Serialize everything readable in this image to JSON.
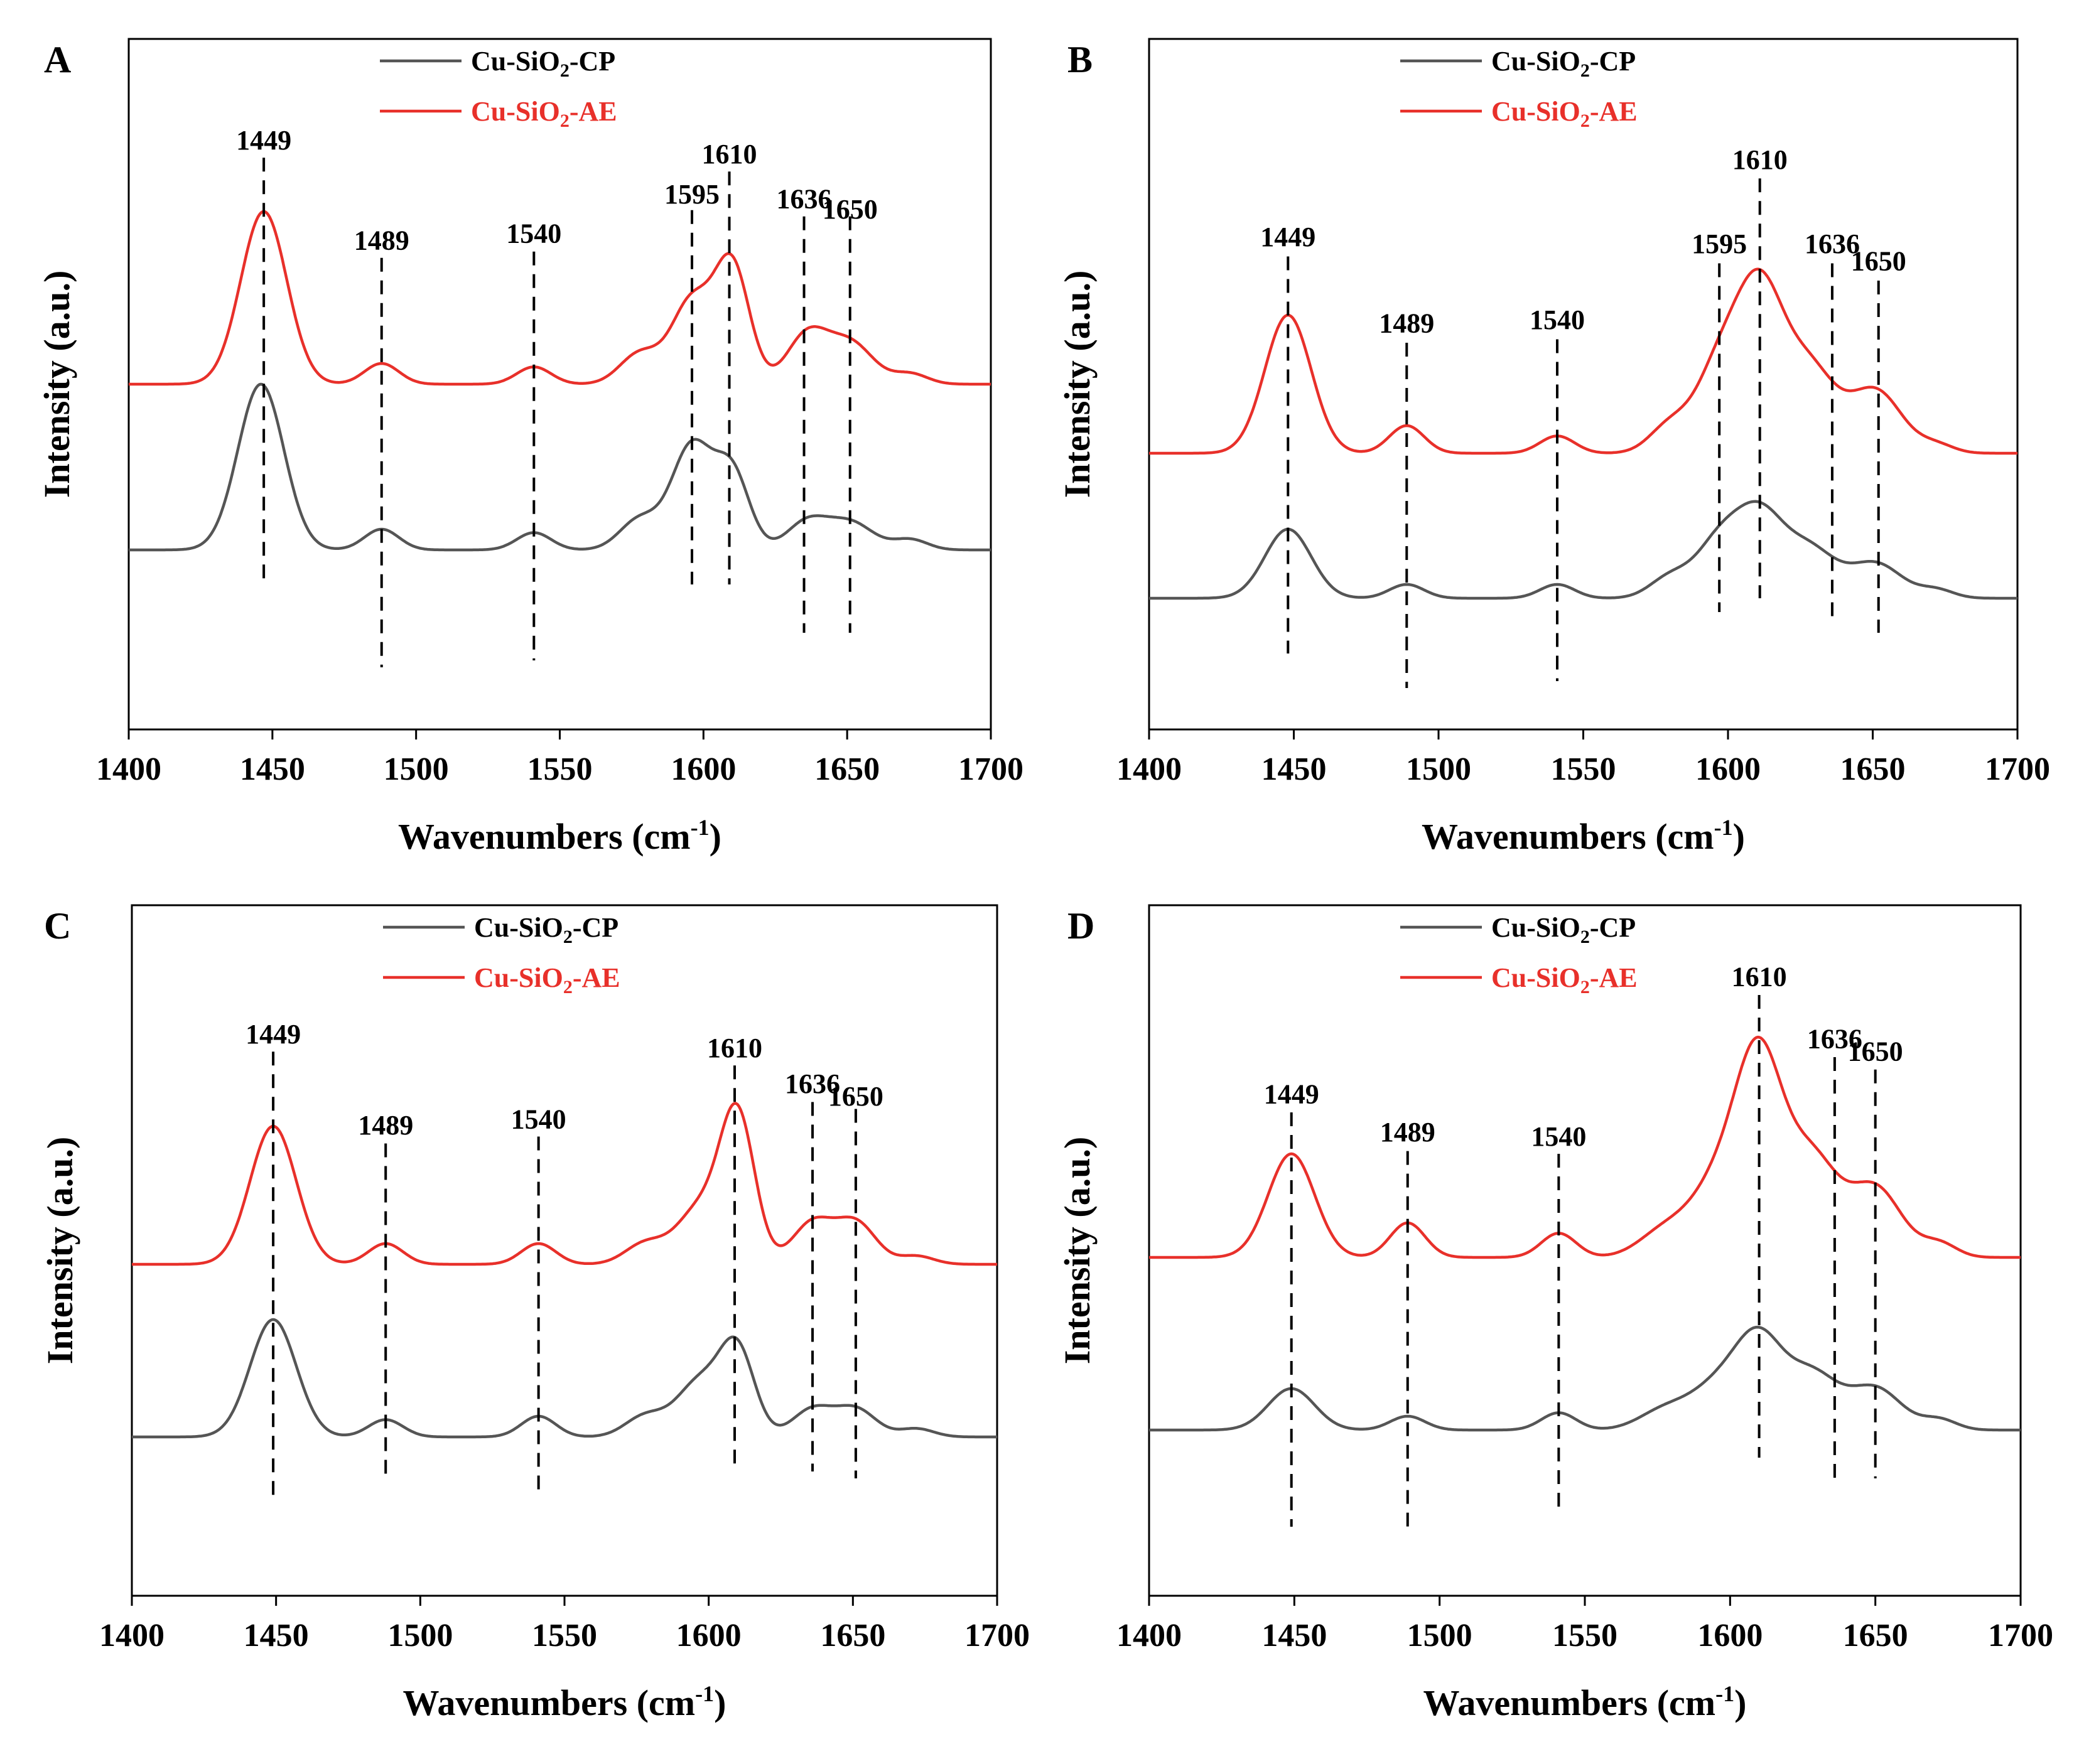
{
  "figure": {
    "panel_count": 4
  },
  "chart_data": [
    {
      "type": "line",
      "panel": "A",
      "xlabel": "Wavenumbers (cm-1)",
      "xlabel_parts": {
        "main": "Wavenumbers (cm",
        "sup": "-1",
        "tail": ")"
      },
      "ylabel": "Intensity (a.u.)",
      "xlim": [
        1400,
        1700
      ],
      "xticks": [
        1400,
        1450,
        1500,
        1550,
        1600,
        1650,
        1700
      ],
      "ylim": [
        0,
        1
      ],
      "grid": false,
      "legend_position": "top-center",
      "series": [
        {
          "name": "Cu-SiO2-CP",
          "name_parts": {
            "pre": "Cu-SiO",
            "sub": "2",
            "post": "-CP"
          },
          "color": "#555555",
          "baseline": 0.26,
          "peaks": [
            [
              1446,
              0.24,
              8
            ],
            [
              1488,
              0.03,
              6
            ],
            [
              1541,
              0.025,
              6
            ],
            [
              1578,
              0.045,
              7
            ],
            [
              1596,
              0.15,
              7
            ],
            [
              1610,
              0.11,
              6
            ],
            [
              1636,
              0.04,
              7
            ],
            [
              1651,
              0.04,
              8
            ],
            [
              1672,
              0.015,
              6
            ]
          ]
        },
        {
          "name": "Cu-SiO2-AE",
          "name_parts": {
            "pre": "Cu-SiO",
            "sub": "2",
            "post": "-AE"
          },
          "color": "#e8302a",
          "baseline": 0.5,
          "peaks": [
            [
              1447,
              0.25,
              8
            ],
            [
              1488,
              0.03,
              6
            ],
            [
              1541,
              0.025,
              6
            ],
            [
              1578,
              0.045,
              7
            ],
            [
              1596,
              0.12,
              7
            ],
            [
              1610,
              0.17,
              6
            ],
            [
              1636,
              0.07,
              7
            ],
            [
              1651,
              0.06,
              8
            ],
            [
              1672,
              0.015,
              6
            ]
          ]
        }
      ],
      "annotations": [
        {
          "label": "1449",
          "x": 1447,
          "line_top": 0.828,
          "line_bottom": 0.21,
          "label_y": 0.84
        },
        {
          "label": "1489",
          "x": 1488,
          "line_top": 0.683,
          "line_bottom": 0.09,
          "label_y": 0.695
        },
        {
          "label": "1540",
          "x": 1541,
          "line_top": 0.692,
          "line_bottom": 0.1,
          "label_y": 0.705
        },
        {
          "label": "1595",
          "x": 1596,
          "line_top": 0.752,
          "line_bottom": 0.21,
          "label_y": 0.762
        },
        {
          "label": "1610",
          "x": 1609,
          "line_top": 0.808,
          "line_bottom": 0.21,
          "label_y": 0.82
        },
        {
          "label": "1636",
          "x": 1635,
          "line_top": 0.743,
          "line_bottom": 0.14,
          "label_y": 0.755
        },
        {
          "label": "1650",
          "x": 1651,
          "line_top": 0.743,
          "line_bottom": 0.14,
          "label_y": 0.74
        }
      ]
    },
    {
      "type": "line",
      "panel": "B",
      "xlabel": "Wavenumbers (cm-1)",
      "xlabel_parts": {
        "main": "Wavenumbers (cm",
        "sup": "-1",
        "tail": ")"
      },
      "ylabel": "Intensity (a.u.)",
      "xlim": [
        1400,
        1700
      ],
      "xticks": [
        1400,
        1450,
        1500,
        1550,
        1600,
        1650,
        1700
      ],
      "ylim": [
        0,
        1
      ],
      "grid": false,
      "legend_position": "top-center",
      "series": [
        {
          "name": "Cu-SiO2-CP",
          "name_parts": {
            "pre": "Cu-SiO",
            "sub": "2",
            "post": "-CP"
          },
          "color": "#555555",
          "baseline": 0.19,
          "peaks": [
            [
              1448,
              0.1,
              8
            ],
            [
              1489,
              0.02,
              6
            ],
            [
              1541,
              0.02,
              6
            ],
            [
              1580,
              0.03,
              7
            ],
            [
              1597,
              0.08,
              8
            ],
            [
              1611,
              0.11,
              8
            ],
            [
              1628,
              0.07,
              9
            ],
            [
              1651,
              0.05,
              9
            ],
            [
              1672,
              0.012,
              6
            ]
          ]
        },
        {
          "name": "Cu-SiO2-AE",
          "name_parts": {
            "pre": "Cu-SiO",
            "sub": "2",
            "post": "-AE"
          },
          "color": "#e8302a",
          "baseline": 0.4,
          "peaks": [
            [
              1448,
              0.2,
              8
            ],
            [
              1489,
              0.04,
              6
            ],
            [
              1541,
              0.025,
              6
            ],
            [
              1580,
              0.04,
              7
            ],
            [
              1597,
              0.12,
              8
            ],
            [
              1611,
              0.22,
              8
            ],
            [
              1628,
              0.12,
              9
            ],
            [
              1651,
              0.09,
              9
            ],
            [
              1672,
              0.012,
              6
            ]
          ]
        }
      ],
      "annotations": [
        {
          "label": "1449",
          "x": 1448,
          "line_top": 0.685,
          "line_bottom": 0.11,
          "label_y": 0.7
        },
        {
          "label": "1489",
          "x": 1489,
          "line_top": 0.56,
          "line_bottom": 0.06,
          "label_y": 0.575
        },
        {
          "label": "1540",
          "x": 1541,
          "line_top": 0.565,
          "line_bottom": 0.07,
          "label_y": 0.58
        },
        {
          "label": "1595",
          "x": 1597,
          "line_top": 0.675,
          "line_bottom": 0.17,
          "label_y": 0.69
        },
        {
          "label": "1610",
          "x": 1611,
          "line_top": 0.798,
          "line_bottom": 0.19,
          "label_y": 0.812
        },
        {
          "label": "1636",
          "x": 1636,
          "line_top": 0.675,
          "line_bottom": 0.16,
          "label_y": 0.69
        },
        {
          "label": "1650",
          "x": 1652,
          "line_top": 0.65,
          "line_bottom": 0.14,
          "label_y": 0.665
        }
      ]
    },
    {
      "type": "line",
      "panel": "C",
      "xlabel": "Wavenumbers (cm-1)",
      "xlabel_parts": {
        "main": "Wavenumbers (cm",
        "sup": "-1",
        "tail": ")"
      },
      "ylabel": "Intensity (a.u.)",
      "xlim": [
        1400,
        1700
      ],
      "xticks": [
        1400,
        1450,
        1500,
        1550,
        1600,
        1650,
        1700
      ],
      "ylim": [
        0,
        1
      ],
      "grid": false,
      "legend_position": "top-center",
      "series": [
        {
          "name": "Cu-SiO2-CP",
          "name_parts": {
            "pre": "Cu-SiO",
            "sub": "2",
            "post": "-CP"
          },
          "color": "#555555",
          "baseline": 0.23,
          "peaks": [
            [
              1449,
              0.17,
              8
            ],
            [
              1488,
              0.025,
              6
            ],
            [
              1541,
              0.03,
              6
            ],
            [
              1578,
              0.03,
              7
            ],
            [
              1597,
              0.08,
              8
            ],
            [
              1610,
              0.12,
              6
            ],
            [
              1636,
              0.04,
              7
            ],
            [
              1651,
              0.04,
              7
            ],
            [
              1672,
              0.012,
              6
            ]
          ]
        },
        {
          "name": "Cu-SiO2-AE",
          "name_parts": {
            "pre": "Cu-SiO",
            "sub": "2",
            "post": "-AE"
          },
          "color": "#e8302a",
          "baseline": 0.48,
          "peaks": [
            [
              1449,
              0.2,
              8
            ],
            [
              1488,
              0.03,
              6
            ],
            [
              1541,
              0.03,
              6
            ],
            [
              1578,
              0.03,
              7
            ],
            [
              1597,
              0.08,
              8
            ],
            [
              1610,
              0.21,
              6
            ],
            [
              1636,
              0.06,
              7
            ],
            [
              1651,
              0.06,
              7
            ],
            [
              1672,
              0.012,
              6
            ]
          ]
        }
      ],
      "annotations": [
        {
          "label": "1449",
          "x": 1449,
          "line_top": 0.788,
          "line_bottom": 0.14,
          "label_y": 0.8
        },
        {
          "label": "1489",
          "x": 1488,
          "line_top": 0.655,
          "line_bottom": 0.17,
          "label_y": 0.668
        },
        {
          "label": "1540",
          "x": 1541,
          "line_top": 0.665,
          "line_bottom": 0.15,
          "label_y": 0.677
        },
        {
          "label": "1610",
          "x": 1609,
          "line_top": 0.768,
          "line_bottom": 0.18,
          "label_y": 0.78
        },
        {
          "label": "1636",
          "x": 1636,
          "line_top": 0.715,
          "line_bottom": 0.18,
          "label_y": 0.728
        },
        {
          "label": "1650",
          "x": 1651,
          "line_top": 0.705,
          "line_bottom": 0.17,
          "label_y": 0.71
        }
      ]
    },
    {
      "type": "line",
      "panel": "D",
      "xlabel": "Wavenumbers (cm-1)",
      "xlabel_parts": {
        "main": "Wavenumbers (cm",
        "sup": "-1",
        "tail": ")"
      },
      "ylabel": "Intensity (a.u.)",
      "xlim": [
        1400,
        1700
      ],
      "xticks": [
        1400,
        1450,
        1500,
        1550,
        1600,
        1650,
        1700
      ],
      "ylim": [
        0,
        1
      ],
      "grid": false,
      "legend_position": "top-center",
      "series": [
        {
          "name": "Cu-SiO2-CP",
          "name_parts": {
            "pre": "Cu-SiO",
            "sub": "2",
            "post": "-CP"
          },
          "color": "#555555",
          "baseline": 0.24,
          "peaks": [
            [
              1449,
              0.06,
              8
            ],
            [
              1489,
              0.02,
              6
            ],
            [
              1541,
              0.025,
              6
            ],
            [
              1578,
              0.03,
              9
            ],
            [
              1596,
              0.06,
              9
            ],
            [
              1610,
              0.12,
              8
            ],
            [
              1628,
              0.08,
              9
            ],
            [
              1650,
              0.06,
              9
            ],
            [
              1672,
              0.015,
              6
            ]
          ]
        },
        {
          "name": "Cu-SiO2-AE",
          "name_parts": {
            "pre": "Cu-SiO",
            "sub": "2",
            "post": "-AE"
          },
          "color": "#e8302a",
          "baseline": 0.49,
          "peaks": [
            [
              1449,
              0.15,
              8
            ],
            [
              1489,
              0.05,
              6
            ],
            [
              1541,
              0.035,
              6
            ],
            [
              1578,
              0.04,
              9
            ],
            [
              1596,
              0.1,
              9
            ],
            [
              1610,
              0.27,
              8
            ],
            [
              1628,
              0.14,
              9
            ],
            [
              1650,
              0.1,
              9
            ],
            [
              1672,
              0.02,
              6
            ]
          ]
        }
      ],
      "annotations": [
        {
          "label": "1449",
          "x": 1449,
          "line_top": 0.7,
          "line_bottom": 0.1,
          "label_y": 0.713
        },
        {
          "label": "1489",
          "x": 1489,
          "line_top": 0.644,
          "line_bottom": 0.1,
          "label_y": 0.658
        },
        {
          "label": "1540",
          "x": 1541,
          "line_top": 0.64,
          "line_bottom": 0.12,
          "label_y": 0.652
        },
        {
          "label": "1610",
          "x": 1610,
          "line_top": 0.87,
          "line_bottom": 0.2,
          "label_y": 0.883
        },
        {
          "label": "1636",
          "x": 1636,
          "line_top": 0.78,
          "line_bottom": 0.17,
          "label_y": 0.793
        },
        {
          "label": "1650",
          "x": 1650,
          "line_top": 0.762,
          "line_bottom": 0.17,
          "label_y": 0.775
        }
      ]
    }
  ]
}
